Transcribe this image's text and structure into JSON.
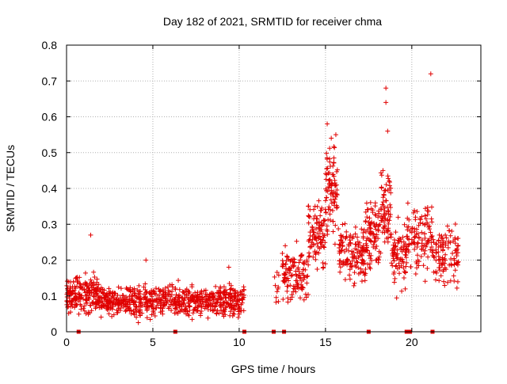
{
  "chart_data": {
    "type": "scatter",
    "title": "Day 182 of 2021, SRMTID for receiver chma",
    "xlabel": "GPS time / hours",
    "ylabel": "SRMTID / TECUs",
    "xlim": [
      0,
      24
    ],
    "ylim": [
      0,
      0.8
    ],
    "x_ticks": [
      0,
      5,
      10,
      15,
      20
    ],
    "x_tick_labels": [
      "0",
      "5",
      "10",
      "15",
      "20"
    ],
    "y_ticks": [
      0,
      0.1,
      0.2,
      0.3,
      0.4,
      0.5,
      0.6,
      0.7,
      0.8
    ],
    "y_tick_labels": [
      "0",
      "0.1",
      "0.2",
      "0.3",
      "0.4",
      "0.5",
      "0.6",
      "0.7",
      "0.8"
    ],
    "grid": true,
    "marker": "+",
    "colors": {
      "series": "#e00000",
      "grid": "#b0b0b0",
      "axis": "#000000"
    },
    "gap_markers_x": [
      0.7,
      6.3,
      10.3,
      12.0,
      12.6,
      17.5,
      19.7,
      19.9,
      21.2
    ],
    "outliers": [
      {
        "x": 1.4,
        "y": 0.27
      },
      {
        "x": 18.5,
        "y": 0.68
      },
      {
        "x": 21.1,
        "y": 0.72
      },
      {
        "x": 15.1,
        "y": 0.58
      },
      {
        "x": 15.6,
        "y": 0.55
      },
      {
        "x": 18.5,
        "y": 0.64
      },
      {
        "x": 18.6,
        "y": 0.56
      },
      {
        "x": 4.6,
        "y": 0.2
      },
      {
        "x": 9.4,
        "y": 0.18
      }
    ],
    "segments": [
      {
        "x_start": 0.0,
        "x_end": 2.0,
        "base": 0.1,
        "spread": 0.05,
        "count": 200
      },
      {
        "x_start": 2.0,
        "x_end": 6.0,
        "base": 0.085,
        "spread": 0.04,
        "count": 330
      },
      {
        "x_start": 6.0,
        "x_end": 10.3,
        "base": 0.085,
        "spread": 0.04,
        "count": 360
      },
      {
        "x_start": 12.0,
        "x_end": 12.3,
        "base": 0.12,
        "spread": 0.06,
        "count": 10
      },
      {
        "x_start": 12.5,
        "x_end": 14.0,
        "base": 0.16,
        "spread": 0.07,
        "count": 120
      },
      {
        "x_start": 14.0,
        "x_end": 15.0,
        "base": 0.27,
        "spread": 0.09,
        "count": 100
      },
      {
        "x_start": 15.0,
        "x_end": 15.7,
        "base": 0.4,
        "spread": 0.12,
        "count": 90
      },
      {
        "x_start": 15.7,
        "x_end": 17.3,
        "base": 0.22,
        "spread": 0.07,
        "count": 130
      },
      {
        "x_start": 17.3,
        "x_end": 18.2,
        "base": 0.27,
        "spread": 0.09,
        "count": 90
      },
      {
        "x_start": 18.2,
        "x_end": 18.8,
        "base": 0.35,
        "spread": 0.1,
        "count": 70
      },
      {
        "x_start": 18.8,
        "x_end": 19.7,
        "base": 0.21,
        "spread": 0.08,
        "count": 80
      },
      {
        "x_start": 19.7,
        "x_end": 21.2,
        "base": 0.26,
        "spread": 0.09,
        "count": 110
      },
      {
        "x_start": 21.2,
        "x_end": 22.7,
        "base": 0.22,
        "spread": 0.09,
        "count": 110
      }
    ]
  }
}
